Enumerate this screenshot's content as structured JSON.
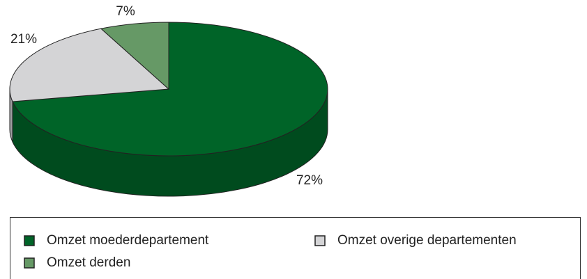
{
  "chart_data": {
    "type": "pie",
    "categories": [
      "Omzet moederdepartement",
      "Omzet overige departementen",
      "Omzet derden"
    ],
    "values": [
      72,
      21,
      7
    ],
    "value_labels": [
      "72%",
      "21%",
      "7%"
    ],
    "colors": [
      "#006428",
      "#d4d4d6",
      "#669966"
    ]
  }
}
